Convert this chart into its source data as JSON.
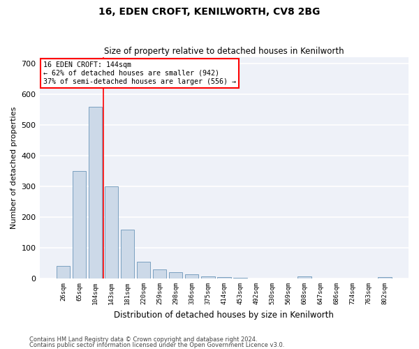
{
  "title": "16, EDEN CROFT, KENILWORTH, CV8 2BG",
  "subtitle": "Size of property relative to detached houses in Kenilworth",
  "xlabel": "Distribution of detached houses by size in Kenilworth",
  "ylabel": "Number of detached properties",
  "bar_color": "#ccd9e8",
  "bar_edge_color": "#7aa0c0",
  "background_color": "#eef1f8",
  "grid_color": "#ffffff",
  "categories": [
    "26sqm",
    "65sqm",
    "104sqm",
    "143sqm",
    "181sqm",
    "220sqm",
    "259sqm",
    "298sqm",
    "336sqm",
    "375sqm",
    "414sqm",
    "453sqm",
    "492sqm",
    "530sqm",
    "569sqm",
    "608sqm",
    "647sqm",
    "686sqm",
    "724sqm",
    "763sqm",
    "802sqm"
  ],
  "values": [
    40,
    350,
    560,
    300,
    160,
    55,
    30,
    20,
    13,
    8,
    5,
    3,
    0,
    0,
    0,
    8,
    0,
    0,
    0,
    0,
    4
  ],
  "ylim": [
    0,
    720
  ],
  "yticks": [
    0,
    100,
    200,
    300,
    400,
    500,
    600,
    700
  ],
  "property_line_idx": 3,
  "property_line_label": "16 EDEN CROFT: 144sqm",
  "annotation_line1": "← 62% of detached houses are smaller (942)",
  "annotation_line2": "37% of semi-detached houses are larger (556) →",
  "footer_line1": "Contains HM Land Registry data © Crown copyright and database right 2024.",
  "footer_line2": "Contains public sector information licensed under the Open Government Licence v3.0."
}
